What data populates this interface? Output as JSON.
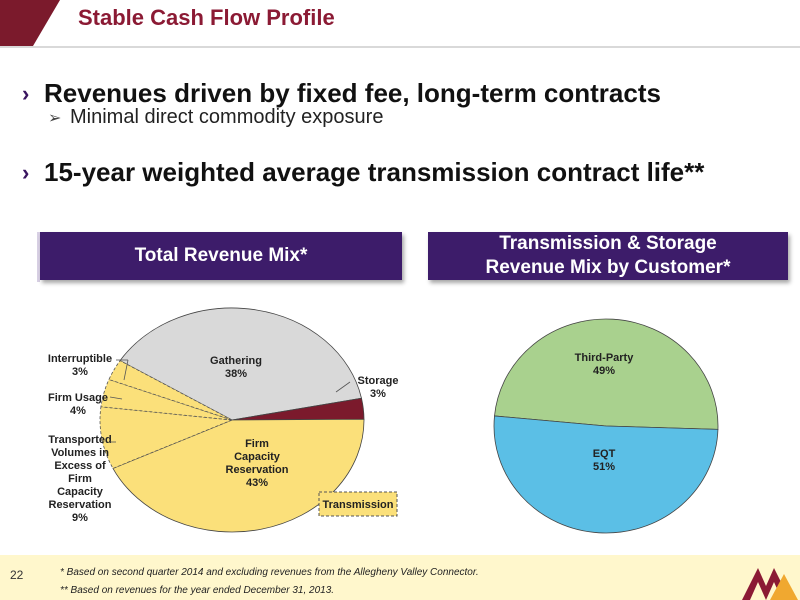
{
  "slide": {
    "title": "Stable Cash Flow Profile",
    "page_number": "22"
  },
  "bullets": {
    "b1": "Revenues driven by fixed fee, long-term contracts",
    "sub1": "Minimal direct commodity exposure",
    "b2": "15-year weighted average transmission contract life**"
  },
  "panels": {
    "left_header": "Total Revenue Mix*",
    "right_header_line1": "Transmission & Storage",
    "right_header_line2": "Revenue Mix by Customer*"
  },
  "footnotes": {
    "f1": "*  Based on second quarter 2014 and excluding revenues from the Allegheny Valley Connector.",
    "f2": "** Based on revenues for the year ended December 31, 2013."
  },
  "colors": {
    "gathering": "#d9d9d9",
    "storage": "#7b1a2c",
    "transmission": "#fbe07a",
    "third_party": "#a9d18e",
    "eqt": "#5bbfe6",
    "header_purple": "#3d1c6a",
    "title_maroon": "#8b1a34"
  },
  "chart_data": [
    {
      "type": "pie",
      "slices": [
        {
          "label": "Gathering",
          "value": 38
        },
        {
          "label": "Storage",
          "value": 3
        },
        {
          "label": "Firm Capacity Reservation",
          "value": 43
        },
        {
          "label": "Transported Volumes in Excess of Firm Capacity Reservation",
          "value": 9
        },
        {
          "label": "Firm Usage",
          "value": 4
        },
        {
          "label": "Interruptible",
          "value": 3
        }
      ],
      "labels": {
        "gathering": [
          "Gathering",
          "38%"
        ],
        "storage": [
          "Storage",
          "3%"
        ],
        "firm_capacity": [
          "Firm",
          "Capacity",
          "Reservation",
          "43%"
        ],
        "transported": [
          "Transported",
          "Volumes in",
          "Excess of",
          "Firm",
          "Capacity",
          "Reservation",
          "9%"
        ],
        "firm_usage": [
          "Firm Usage",
          "4%"
        ],
        "interruptible": [
          "Interruptible",
          "3%"
        ]
      },
      "legend": "Transmission"
    },
    {
      "type": "pie",
      "slices": [
        {
          "label": "Third-Party",
          "value": 49
        },
        {
          "label": "EQT",
          "value": 51
        }
      ],
      "labels": {
        "third_party": [
          "Third-Party",
          "49%"
        ],
        "eqt": [
          "EQT",
          "51%"
        ]
      }
    }
  ]
}
